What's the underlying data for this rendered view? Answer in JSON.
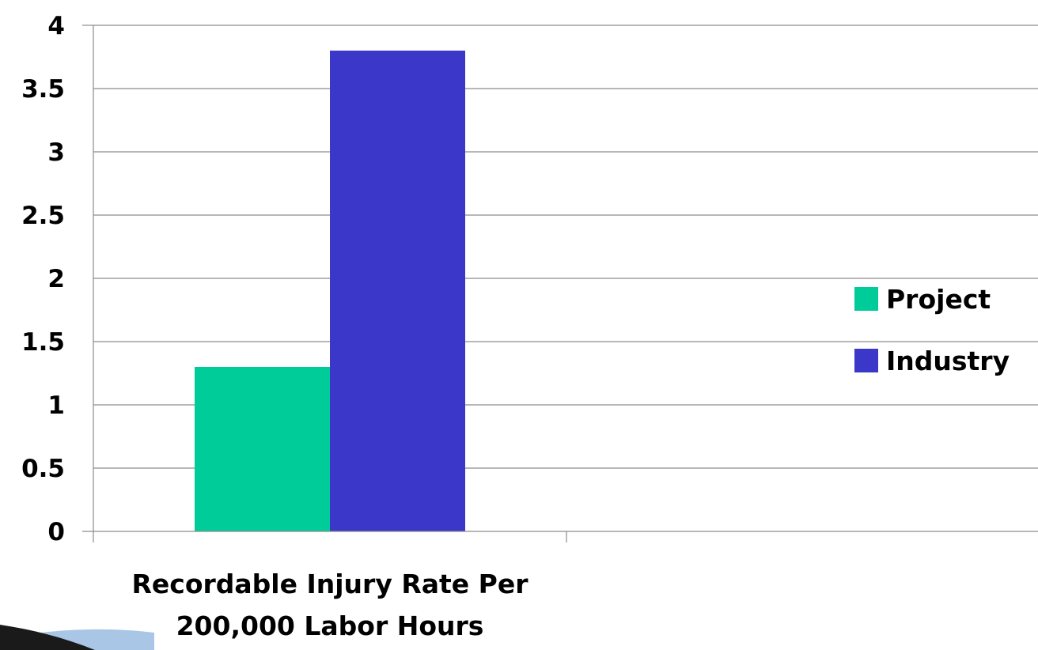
{
  "chart_data": {
    "type": "bar",
    "categories": [
      "Recordable Injury Rate Per 200,000 Labor Hours"
    ],
    "category_label_lines": [
      "Recordable Injury Rate Per",
      "200,000 Labor Hours"
    ],
    "series": [
      {
        "name": "Project",
        "values": [
          1.3
        ],
        "color": "#00cc99"
      },
      {
        "name": "Industry",
        "values": [
          3.8
        ],
        "color": "#3a37c9"
      }
    ],
    "ylim": [
      0,
      4
    ],
    "yticks": [
      "0",
      "0.5",
      "1",
      "1.5",
      "2",
      "2.5",
      "3",
      "3.5",
      "4"
    ],
    "grid": true,
    "legend_position": "right",
    "title": "",
    "xlabel": "",
    "ylabel": ""
  },
  "decoration": {
    "corner_swoosh_color": "#1a1a1a",
    "corner_swoosh_accent": "#a9c6e6"
  }
}
